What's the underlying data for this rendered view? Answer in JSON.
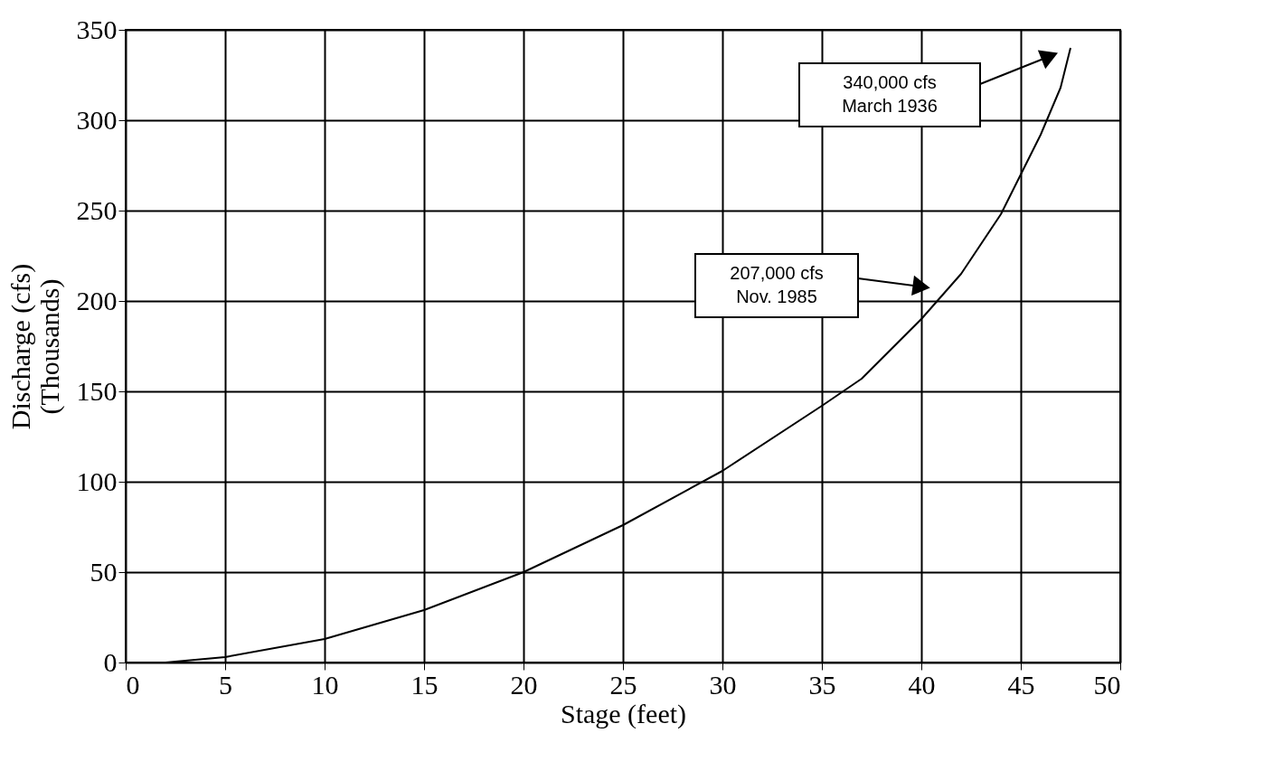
{
  "chart_data": {
    "type": "line",
    "xlabel": "Stage (feet)",
    "ylabel": "Discharge (cfs)\n(Thousands)",
    "x": [
      2,
      5,
      10,
      15,
      20,
      25,
      30,
      35,
      37,
      40,
      42,
      44,
      45,
      46,
      47,
      47.5
    ],
    "series": [
      {
        "color": "#000000",
        "values": [
          0,
          3,
          13,
          29,
          50,
          76,
          106,
          142,
          157,
          190,
          215,
          248,
          270,
          292,
          318,
          340
        ]
      }
    ],
    "xlim": [
      0,
      50
    ],
    "ylim": [
      0,
      350
    ],
    "xticks": [
      0,
      5,
      10,
      15,
      20,
      25,
      30,
      35,
      40,
      45,
      50
    ],
    "yticks": [
      0,
      50,
      100,
      150,
      200,
      250,
      300,
      350
    ],
    "grid": true,
    "marker": "none",
    "line_style": "solid",
    "annotations": [
      "340,000 cfs\nMarch 1936",
      "207,000 cfs\nNov. 1985"
    ]
  }
}
